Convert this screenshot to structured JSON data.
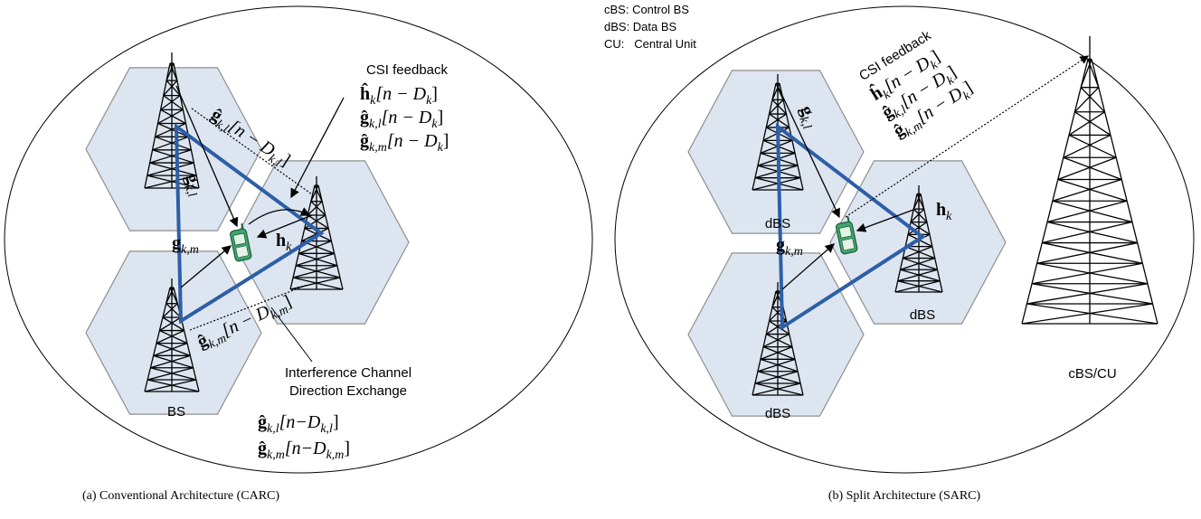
{
  "left": {
    "csi_title": "CSI feedback",
    "csi": [
      {
        "main": "ĥ",
        "sub": "k",
        "arg": "[n − D",
        "arg_sub": "k",
        "close": "]"
      },
      {
        "main": "ĝ",
        "sub": "k,l",
        "arg": "[n − D",
        "arg_sub": "k",
        "close": "]"
      },
      {
        "main": "ĝ",
        "sub": "k,m",
        "arg": "[n − D",
        "arg_sub": "k",
        "close": "]"
      }
    ],
    "g_kl_delayed": {
      "main": "ĝ",
      "sub": "k,l",
      "arg": "[n − D",
      "arg_sub": "k,l",
      "close": "]"
    },
    "g_kl": {
      "main": "g",
      "sub": "k,l"
    },
    "g_km": {
      "main": "g",
      "sub": "k,m"
    },
    "h_k": {
      "main": "h",
      "sub": "k"
    },
    "g_km_delayed": {
      "main": "ĝ",
      "sub": "k,m",
      "arg": "[n − D",
      "arg_sub": "k,m",
      "close": "]"
    },
    "exchange": [
      "Interference Channel",
      "Direction Exchange"
    ],
    "bs": "BS",
    "exchange_formulas": [
      {
        "main": "ĝ",
        "sub": "k,l",
        "arg": "[n−D",
        "arg_sub": "k,l",
        "close": "]"
      },
      {
        "main": "ĝ",
        "sub": "k,m",
        "arg": "[n−D",
        "arg_sub": "k,m",
        "close": "]"
      }
    ],
    "caption": "(a) Conventional Architecture (CARC)"
  },
  "right": {
    "legend": [
      "cBS: Control BS",
      "dBS: Data BS",
      "CU:   Central Unit"
    ],
    "csi_title": "CSI feedback",
    "csi": [
      {
        "main": "ĥ",
        "sub": "k",
        "arg": "[n − D",
        "arg_sub": "k",
        "close": "]"
      },
      {
        "main": "ĝ",
        "sub": "k,l",
        "arg": "[n − D",
        "arg_sub": "k",
        "close": "]"
      },
      {
        "main": "ĝ",
        "sub": "k,m",
        "arg": "[n − D",
        "arg_sub": "k",
        "close": "]"
      }
    ],
    "g_kl": {
      "main": "g",
      "sub": "k,l"
    },
    "h_k": {
      "main": "h",
      "sub": "k"
    },
    "g_km": {
      "main": "g",
      "sub": "k,m"
    },
    "dbs": [
      "dBS",
      "dBS",
      "dBS"
    ],
    "cbs": "cBS/CU",
    "caption": "(b) Split Architecture (SARC)"
  }
}
